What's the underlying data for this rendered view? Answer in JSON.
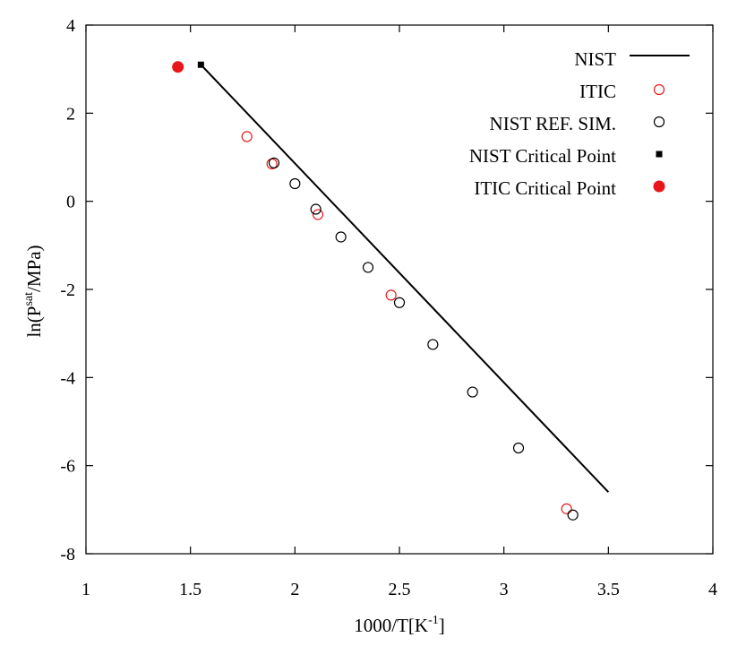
{
  "chart_data": {
    "type": "scatter",
    "title": "",
    "xlabel": {
      "main": "1000/T[K",
      "sup": "-1",
      "tail": "]"
    },
    "ylabel": {
      "pre": "ln(P",
      "sup": "sat",
      "post": "/MPa)"
    },
    "xlim": [
      1,
      4
    ],
    "ylim": [
      -8,
      4
    ],
    "xticks": [
      1,
      1.5,
      2,
      2.5,
      3,
      3.5,
      4
    ],
    "yticks": [
      -8,
      -6,
      -4,
      -2,
      0,
      2,
      4
    ],
    "xtick_labels": [
      "1",
      "1.5",
      "2",
      "2.5",
      "3",
      "3.5",
      "4"
    ],
    "ytick_labels": [
      "-8",
      "-6",
      "-4",
      "-2",
      "0",
      "2",
      "4"
    ],
    "grid": false,
    "legend_position": "top-right",
    "series": [
      {
        "name": "NIST",
        "kind": "line",
        "color": "#000000",
        "x": [
          1.55,
          3.5
        ],
        "y": [
          3.1,
          -6.6
        ]
      },
      {
        "name": "ITIC",
        "kind": "open-circle",
        "color": "#e8161a",
        "x": [
          1.77,
          1.89,
          2.11,
          2.46,
          3.3
        ],
        "y": [
          1.47,
          0.85,
          -0.3,
          -2.13,
          -6.98
        ]
      },
      {
        "name": "NIST REF. SIM.",
        "kind": "open-circle",
        "color": "#000000",
        "x": [
          1.9,
          2.0,
          2.1,
          2.22,
          2.35,
          2.5,
          2.66,
          2.85,
          3.07,
          3.33
        ],
        "y": [
          0.87,
          0.4,
          -0.18,
          -0.81,
          -1.5,
          -2.3,
          -3.25,
          -4.33,
          -5.6,
          -7.12
        ]
      },
      {
        "name": "NIST Critical Point",
        "kind": "filled-square",
        "color": "#000000",
        "x": [
          1.55
        ],
        "y": [
          3.1
        ]
      },
      {
        "name": "ITIC Critical Point",
        "kind": "filled-circle",
        "color": "#e8161a",
        "x": [
          1.44
        ],
        "y": [
          3.05
        ]
      }
    ]
  }
}
